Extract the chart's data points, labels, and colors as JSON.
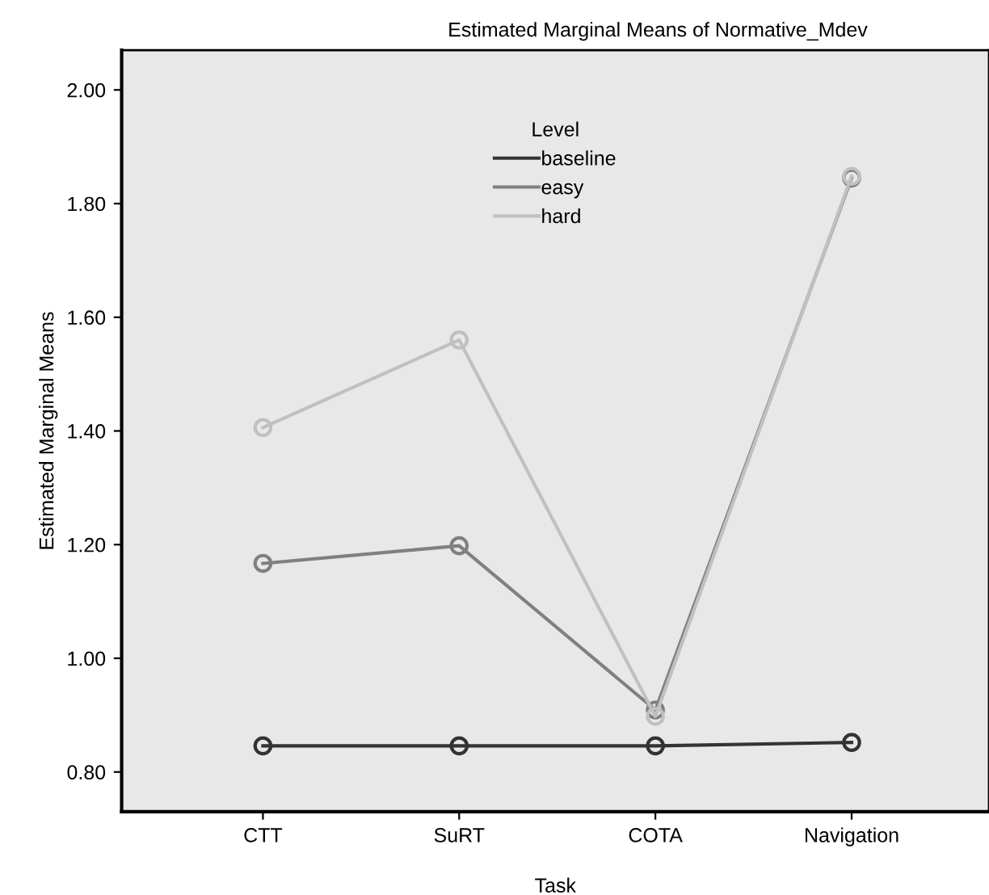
{
  "chart_data": {
    "type": "line",
    "title": "Estimated Marginal Means of Normative_Mdev",
    "xlabel": "Task",
    "ylabel": "Estimated Marginal Means",
    "legend_title": "Level",
    "categories": [
      "CTT",
      "SuRT",
      "COTA",
      "Navigation"
    ],
    "series": [
      {
        "name": "baseline",
        "color": "#333333",
        "values": [
          0.846,
          0.846,
          0.846,
          0.852
        ]
      },
      {
        "name": "easy",
        "color": "#808080",
        "values": [
          1.167,
          1.198,
          0.909,
          1.845
        ]
      },
      {
        "name": "hard",
        "color": "#c0c0c0",
        "values": [
          1.406,
          1.56,
          0.898,
          1.848
        ]
      }
    ],
    "ylim": [
      0.73,
      2.07
    ],
    "yticks": [
      {
        "value": 0.8,
        "label": "0.80"
      },
      {
        "value": 1.0,
        "label": "1.00"
      },
      {
        "value": 1.2,
        "label": "1.20"
      },
      {
        "value": 1.4,
        "label": "1.40"
      },
      {
        "value": 1.6,
        "label": "1.60"
      },
      {
        "value": 1.8,
        "label": "1.80"
      },
      {
        "value": 2.0,
        "label": "2.00"
      }
    ],
    "marker": "circle",
    "line_style": "solid",
    "legend": "top",
    "grid": false
  }
}
